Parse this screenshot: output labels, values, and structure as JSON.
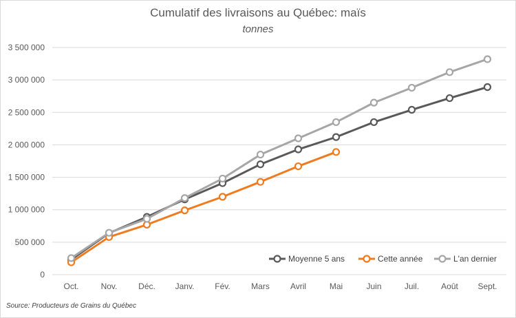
{
  "chart_data": {
    "type": "line",
    "title": "Cumulatif des livraisons au Québec: maïs",
    "subtitle": "tonnes",
    "source": "Source: Producteurs de Grains du Québec",
    "categories": [
      "Oct.",
      "Nov.",
      "Déc.",
      "Janv.",
      "Fév.",
      "Mars",
      "Avril",
      "Mai",
      "Juin",
      "Juil.",
      "Août",
      "Sept."
    ],
    "ylim": [
      0,
      3500000
    ],
    "yticks": [
      0,
      500000,
      1000000,
      1500000,
      2000000,
      2500000,
      3000000,
      3500000
    ],
    "grid": true,
    "legend_position": "bottom-right",
    "series": [
      {
        "name": "Moyenne 5 ans",
        "color": "#595959",
        "values": [
          230000,
          640000,
          890000,
          1160000,
          1410000,
          1700000,
          1930000,
          2120000,
          2350000,
          2540000,
          2720000,
          2890000
        ]
      },
      {
        "name": "Cette année",
        "color": "#f07b1e",
        "values": [
          190000,
          580000,
          770000,
          990000,
          1200000,
          1430000,
          1670000,
          1890000,
          null,
          null,
          null,
          null
        ]
      },
      {
        "name": "L'an dernier",
        "color": "#a6a6a6",
        "values": [
          255000,
          645000,
          860000,
          1180000,
          1480000,
          1850000,
          2100000,
          2350000,
          2650000,
          2880000,
          3120000,
          3320000
        ]
      }
    ]
  }
}
